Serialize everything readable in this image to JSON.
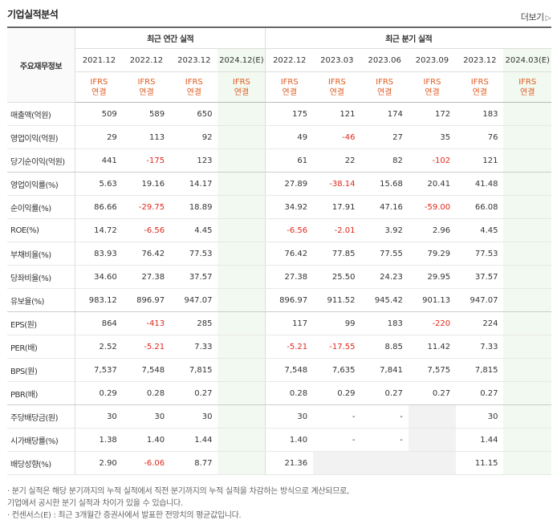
{
  "title": "기업실적분석",
  "more_label": "더보기",
  "header": {
    "row_label": "주요재무정보",
    "annual_group": "최근 연간 실적",
    "quarter_group": "최근 분기 실적",
    "annual_periods": [
      "2021.12",
      "2022.12",
      "2023.12",
      "2024.12(E)"
    ],
    "quarter_periods": [
      "2022.12",
      "2023.03",
      "2023.06",
      "2023.09",
      "2023.12",
      "2024.03(E)"
    ],
    "basis_line1": "IFRS",
    "basis_line2": "연결"
  },
  "rows": [
    {
      "label": "매출액(억원)",
      "annual": [
        "509",
        "589",
        "650",
        ""
      ],
      "quarter": [
        "175",
        "121",
        "174",
        "172",
        "183",
        ""
      ]
    },
    {
      "label": "영업이익(억원)",
      "annual": [
        "29",
        "113",
        "92",
        ""
      ],
      "quarter": [
        "49",
        "-46",
        "27",
        "35",
        "76",
        ""
      ]
    },
    {
      "label": "당기순이익(억원)",
      "annual": [
        "441",
        "-175",
        "123",
        ""
      ],
      "quarter": [
        "61",
        "22",
        "82",
        "-102",
        "121",
        ""
      ]
    },
    {
      "label": "영업이익률(%)",
      "annual": [
        "5.63",
        "19.16",
        "14.17",
        ""
      ],
      "quarter": [
        "27.89",
        "-38.14",
        "15.68",
        "20.41",
        "41.48",
        ""
      ]
    },
    {
      "label": "순이익률(%)",
      "annual": [
        "86.66",
        "-29.75",
        "18.89",
        ""
      ],
      "quarter": [
        "34.92",
        "17.91",
        "47.16",
        "-59.00",
        "66.08",
        ""
      ]
    },
    {
      "label": "ROE(%)",
      "annual": [
        "14.72",
        "-6.56",
        "4.45",
        ""
      ],
      "quarter": [
        "-6.56",
        "-2.01",
        "3.92",
        "2.96",
        "4.45",
        ""
      ]
    },
    {
      "label": "부채비율(%)",
      "annual": [
        "83.93",
        "76.42",
        "77.53",
        ""
      ],
      "quarter": [
        "76.42",
        "77.85",
        "77.55",
        "79.29",
        "77.53",
        ""
      ]
    },
    {
      "label": "당좌비율(%)",
      "annual": [
        "34.60",
        "27.38",
        "37.57",
        ""
      ],
      "quarter": [
        "27.38",
        "25.50",
        "24.23",
        "29.95",
        "37.57",
        ""
      ]
    },
    {
      "label": "유보율(%)",
      "annual": [
        "983.12",
        "896.97",
        "947.07",
        ""
      ],
      "quarter": [
        "896.97",
        "911.52",
        "945.42",
        "901.13",
        "947.07",
        ""
      ]
    },
    {
      "label": "EPS(원)",
      "annual": [
        "864",
        "-413",
        "285",
        ""
      ],
      "quarter": [
        "117",
        "99",
        "183",
        "-220",
        "224",
        ""
      ]
    },
    {
      "label": "PER(배)",
      "annual": [
        "2.52",
        "-5.21",
        "7.33",
        ""
      ],
      "quarter": [
        "-5.21",
        "-17.55",
        "8.85",
        "11.42",
        "7.33",
        ""
      ]
    },
    {
      "label": "BPS(원)",
      "annual": [
        "7,537",
        "7,548",
        "7,815",
        ""
      ],
      "quarter": [
        "7,548",
        "7,635",
        "7,841",
        "7,575",
        "7,815",
        ""
      ]
    },
    {
      "label": "PBR(배)",
      "annual": [
        "0.29",
        "0.28",
        "0.27",
        ""
      ],
      "quarter": [
        "0.28",
        "0.29",
        "0.27",
        "0.27",
        "0.27",
        ""
      ]
    },
    {
      "label": "주당배당금(원)",
      "annual": [
        "30",
        "30",
        "30",
        ""
      ],
      "quarter": [
        "30",
        "-",
        "-",
        "",
        "30",
        ""
      ]
    },
    {
      "label": "시가배당률(%)",
      "annual": [
        "1.38",
        "1.40",
        "1.44",
        ""
      ],
      "quarter": [
        "1.40",
        "-",
        "-",
        "",
        "1.44",
        ""
      ]
    },
    {
      "label": "배당성향(%)",
      "annual": [
        "2.90",
        "-6.06",
        "8.77",
        ""
      ],
      "quarter": [
        "21.36",
        "",
        "",
        "",
        "11.15",
        ""
      ]
    }
  ],
  "footnotes": [
    "· 분기 실적은 해당 분기까지의 누적 실적에서 직전 분기까지의 누적 실적을 차감하는 방식으로 계산되므로,",
    "  기업에서 공시한 분기 실적과 차이가 있을 수 있습니다.",
    "· 컨센서스(E) : 최근 3개월간 증권사에서 발표한 전망치의 평균값입니다."
  ]
}
